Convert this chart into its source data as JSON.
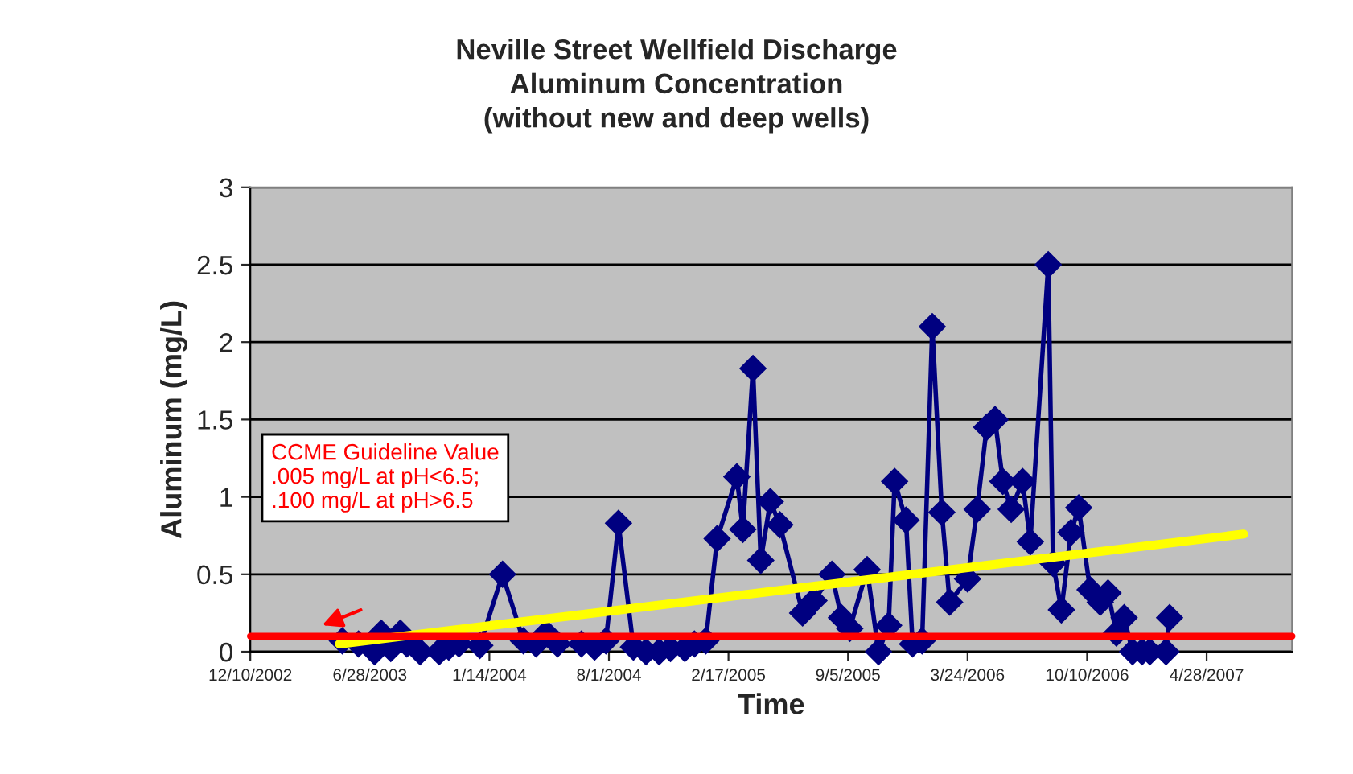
{
  "chart_data": {
    "type": "line",
    "title": "Neville Street Wellfield Discharge\nAluminum Concentration\n(without new and deep wells)",
    "xlabel": "Time",
    "ylabel": "Aluminum (mg/L)",
    "series": [
      {
        "color": "#000080",
        "marker": "diamond",
        "x": [
          "2003-05-13",
          "2003-06-09",
          "2003-07-06",
          "2003-07-17",
          "2003-08-02",
          "2003-08-18",
          "2003-08-29",
          "2003-09-20",
          "2003-10-22",
          "2003-11-07",
          "2003-11-24",
          "2003-12-29",
          "2004-02-05",
          "2004-03-11",
          "2004-04-01",
          "2004-04-18",
          "2004-05-07",
          "2004-06-16",
          "2004-07-08",
          "2004-07-27",
          "2004-08-17",
          "2004-09-11",
          "2004-10-02",
          "2004-10-24",
          "2004-11-12",
          "2004-12-06",
          "2004-12-22",
          "2005-01-10",
          "2005-01-29",
          "2005-03-03",
          "2005-03-13",
          "2005-03-30",
          "2005-04-12",
          "2005-04-28",
          "2005-05-14",
          "2005-06-21",
          "2005-07-10",
          "2005-08-09",
          "2005-08-25",
          "2005-09-08",
          "2005-10-07",
          "2005-10-26",
          "2005-11-12",
          "2005-11-22",
          "2005-12-11",
          "2005-12-22",
          "2006-01-07",
          "2006-01-24",
          "2006-02-09",
          "2006-02-22",
          "2006-03-24",
          "2006-04-09",
          "2006-04-25",
          "2006-05-09",
          "2006-05-22",
          "2006-06-05",
          "2006-06-24",
          "2006-07-07",
          "2006-08-06",
          "2006-08-14",
          "2006-08-28",
          "2006-09-13",
          "2006-09-26",
          "2006-10-15",
          "2006-11-01",
          "2006-11-14",
          "2006-11-28",
          "2006-12-11",
          "2006-12-25",
          "2007-01-10",
          "2007-01-23",
          "2007-02-19",
          "2007-02-25"
        ],
        "values": [
          0.07,
          0.05,
          0.0,
          0.12,
          0.02,
          0.12,
          0.05,
          0.0,
          0.0,
          0.03,
          0.05,
          0.04,
          0.5,
          0.07,
          0.05,
          0.12,
          0.05,
          0.05,
          0.03,
          0.07,
          0.83,
          0.03,
          0.0,
          0.0,
          0.02,
          0.02,
          0.05,
          0.07,
          0.73,
          1.13,
          0.79,
          1.83,
          0.59,
          0.97,
          0.82,
          0.25,
          0.33,
          0.5,
          0.22,
          0.15,
          0.53,
          0.0,
          0.17,
          1.1,
          0.85,
          0.05,
          0.07,
          2.1,
          0.9,
          0.32,
          0.47,
          0.92,
          1.45,
          1.5,
          1.1,
          0.92,
          1.1,
          0.71,
          2.5,
          0.57,
          0.27,
          0.77,
          0.93,
          0.4,
          0.32,
          0.38,
          0.12,
          0.22,
          0.0,
          0.0,
          0.0,
          0.0,
          0.22
        ]
      },
      {
        "color": "#ffff00",
        "marker": "none",
        "x": [
          "2003-05-08",
          "2007-06-29"
        ],
        "values": [
          0.05,
          0.76
        ]
      }
    ],
    "xlim": [
      "2002-12-10",
      "2007-09-18"
    ],
    "xticks": [
      {
        "value": "2002-12-10",
        "label": "12/10/2002"
      },
      {
        "value": "2003-06-28",
        "label": "6/28/2003"
      },
      {
        "value": "2004-01-14",
        "label": "1/14/2004"
      },
      {
        "value": "2004-08-01",
        "label": "8/1/2004"
      },
      {
        "value": "2005-02-17",
        "label": "2/17/2005"
      },
      {
        "value": "2005-09-05",
        "label": "9/5/2005"
      },
      {
        "value": "2006-03-24",
        "label": "3/24/2006"
      },
      {
        "value": "2006-10-10",
        "label": "10/10/2006"
      },
      {
        "value": "2007-04-28",
        "label": "4/28/2007"
      }
    ],
    "ylim": [
      0,
      3
    ],
    "yticks": [
      0,
      0.5,
      1,
      1.5,
      2,
      2.5,
      3
    ],
    "ref_lines": [
      {
        "axis": "y",
        "value": 0.1,
        "color": "#ff0000"
      }
    ],
    "annotations": [
      "CCME Guideline Value\n.005 mg/L at pH<6.5;\n.100 mg/L at pH>6.5"
    ],
    "grid": "y",
    "legend": false
  }
}
